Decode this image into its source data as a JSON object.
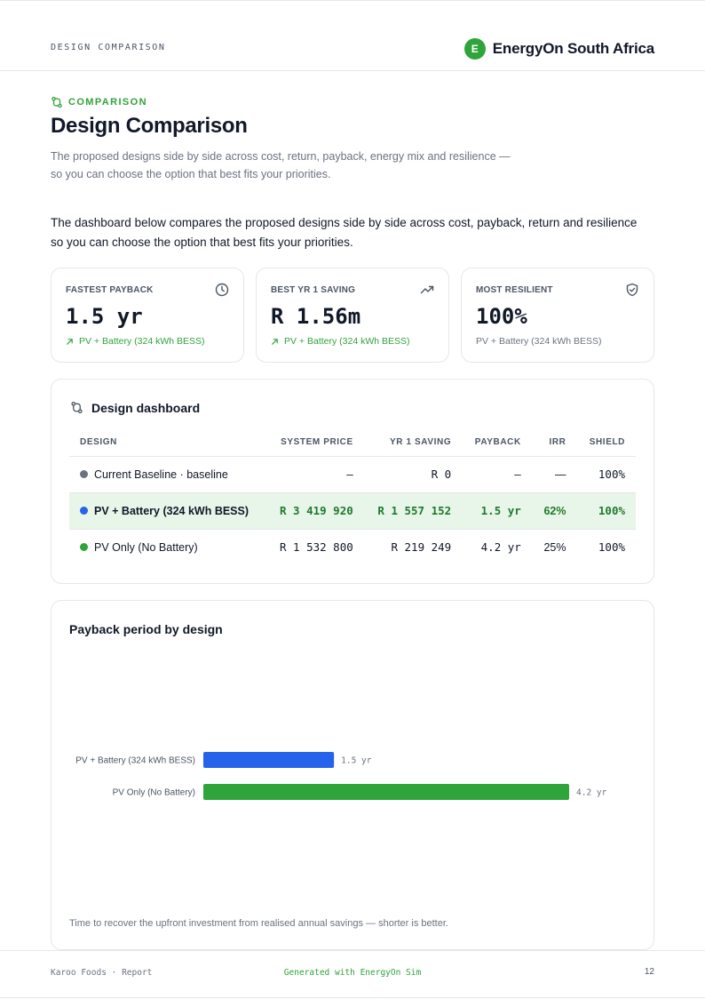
{
  "header": {
    "section_label": "DESIGN COMPARISON",
    "brand_initial": "E",
    "brand_name": "EnergyOn South Africa"
  },
  "intro_block": {
    "eyebrow": "COMPARISON",
    "title": "Design Comparison",
    "subtitle_line1": "The proposed designs side by side across cost, return, payback, energy mix and resilience —",
    "subtitle_line2": "so you can choose the option that best fits your priorities.",
    "body_line1": "The dashboard below compares the proposed designs side by side across cost, payback, return and resilience",
    "body_line2": "so you can choose the option that best fits your priorities."
  },
  "kpis": [
    {
      "label": "FASTEST PAYBACK",
      "value": "1.5 yr",
      "note": "PV + Battery (324 kWh BESS)",
      "icon": "clock-icon"
    },
    {
      "label": "BEST YR 1 SAVING",
      "value": "R 1.56m",
      "note": "PV + Battery (324 kWh BESS)",
      "icon": "trending-up-icon"
    },
    {
      "label": "MOST RESILIENT",
      "value": "100%",
      "note": "PV + Battery (324 kWh BESS)",
      "icon": "shield-check-icon"
    }
  ],
  "dashboard": {
    "title": "Design dashboard",
    "columns": [
      "DESIGN",
      "SYSTEM PRICE",
      "YR 1 SAVING",
      "PAYBACK",
      "IRR",
      "SHIELD"
    ],
    "rows": [
      {
        "design": "Current Baseline · baseline",
        "dot_color": "#6b7280",
        "price": "—",
        "saving": "R 0",
        "payback": "—",
        "irr": "—",
        "shield": "100%"
      },
      {
        "design": "PV + Battery (324 kWh BESS)",
        "dot_color": "#2563eb",
        "price": "R 3 419 920",
        "saving": "R 1 557 152",
        "payback": "1.5 yr",
        "irr": "62%",
        "shield": "100%"
      },
      {
        "design": "PV Only (No Battery)",
        "dot_color": "#2ea43b",
        "price": "R 1 532 800",
        "saving": "R 219 249",
        "payback": "4.2 yr",
        "irr": "25%",
        "shield": "100%"
      }
    ]
  },
  "payback_chart": {
    "title": "Payback period by design",
    "caption": "Time to recover the upfront investment from realised annual savings — shorter is better.",
    "unit": "yr"
  },
  "chart_data": {
    "type": "bar",
    "orientation": "horizontal",
    "title": "Payback period by design",
    "categories": [
      "PV + Battery (324 kWh BESS)",
      "PV Only (No Battery)"
    ],
    "values": [
      1.5,
      4.2
    ],
    "value_labels": [
      "1.5 yr",
      "4.2 yr"
    ],
    "colors": [
      "#2563eb",
      "#2ea43b"
    ],
    "xlim": [
      0,
      4.2
    ],
    "grid": false
  },
  "footer": {
    "left": "Karoo Foods · Report",
    "center": "Generated with EnergyOn Sim",
    "page_number": "12"
  },
  "colors": {
    "accent_green": "#2ea43b",
    "accent_blue": "#2563eb",
    "highlight_row": "#e8f5e9"
  }
}
